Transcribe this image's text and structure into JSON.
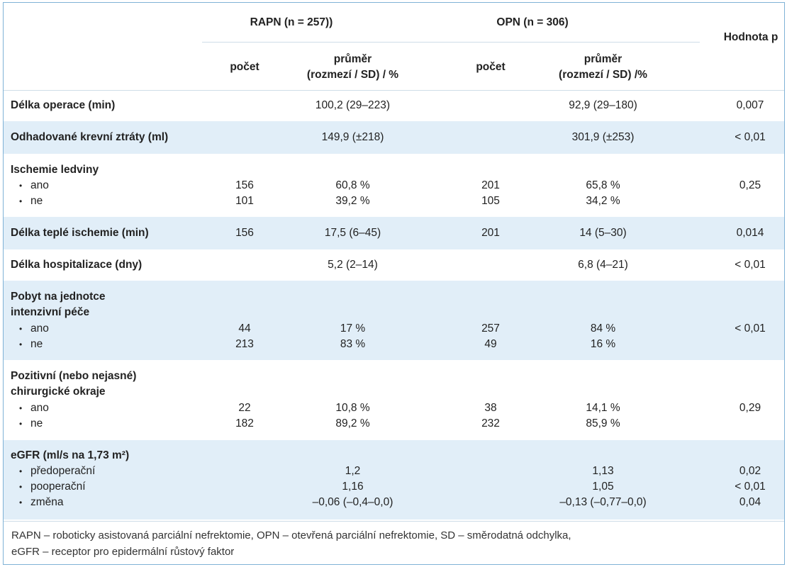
{
  "header": {
    "rapn_group": "RAPN (n = 257))",
    "opn_group": "OPN (n = 306)",
    "p_value": "Hodnota p",
    "rapn_count": "počet",
    "rapn_mean": "průměr",
    "rapn_mean_sub": "(rozmezí / SD) / %",
    "opn_count": "počet",
    "opn_mean": "průměr",
    "opn_mean_sub": "(rozmezí / SD) /%"
  },
  "rows": {
    "op_length": {
      "label": "Délka operace (min)",
      "rapn_mean": "100,2 (29–223)",
      "opn_mean": "92,9 (29–180)",
      "p": "0,007"
    },
    "blood_loss": {
      "label": "Odhadované krevní ztráty (ml)",
      "rapn_mean": "149,9 (±218)",
      "opn_mean": "301,9 (±253)",
      "p": "< 0,01"
    },
    "ischemia": {
      "label": "Ischemie ledviny",
      "p": "0,25",
      "sub": [
        {
          "label": "ano",
          "rapn_count": "156",
          "rapn_mean": "60,8 %",
          "opn_count": "201",
          "opn_mean": "65,8 %"
        },
        {
          "label": "ne",
          "rapn_count": "101",
          "rapn_mean": "39,2 %",
          "opn_count": "105",
          "opn_mean": "34,2 %"
        }
      ]
    },
    "warm_ischemia": {
      "label": "Délka teplé ischemie (min)",
      "rapn_count": "156",
      "rapn_mean": "17,5 (6–45)",
      "opn_count": "201",
      "opn_mean": "14 (5–30)",
      "p": "0,014"
    },
    "hospital": {
      "label": "Délka hospitalizace (dny)",
      "rapn_mean": "5,2 (2–14)",
      "opn_mean": "6,8 (4–21)",
      "p": "< 0,01"
    },
    "icu": {
      "label1": "Pobyt na jednotce",
      "label2": "intenzivní péče",
      "p": "< 0,01",
      "sub": [
        {
          "label": "ano",
          "rapn_count": "44",
          "rapn_mean": "17 %",
          "opn_count": "257",
          "opn_mean": "84 %"
        },
        {
          "label": "ne",
          "rapn_count": "213",
          "rapn_mean": "83 %",
          "opn_count": "49",
          "opn_mean": "16 %"
        }
      ]
    },
    "margins": {
      "label1": "Pozitivní (nebo nejasné)",
      "label2": "chirurgické okraje",
      "p": "0,29",
      "sub": [
        {
          "label": "ano",
          "rapn_count": "22",
          "rapn_mean": "10,8 %",
          "opn_count": "38",
          "opn_mean": "14,1 %"
        },
        {
          "label": "ne",
          "rapn_count": "182",
          "rapn_mean": "89,2 %",
          "opn_count": "232",
          "opn_mean": "85,9 %"
        }
      ]
    },
    "egfr": {
      "label": "eGFR (ml/s na 1,73 m²)",
      "sub": [
        {
          "label": "předoperační",
          "rapn_mean": "1,2",
          "opn_mean": "1,13",
          "p": "0,02"
        },
        {
          "label": "pooperační",
          "rapn_mean": "1,16",
          "opn_mean": "1,05",
          "p": "< 0,01"
        },
        {
          "label": "změna",
          "rapn_mean": "–0,06 (–0,4–0,0)",
          "opn_mean": "–0,13 (–0,77–0,0)",
          "p": "0,04"
        }
      ]
    }
  },
  "footnote": {
    "line1": "RAPN – roboticky asistovaná parciální nefrektomie, OPN – otevřená parciální nefrektomie, SD – směrodatná odchylka,",
    "line2": "eGFR – receptor pro epidermální růstový faktor"
  }
}
